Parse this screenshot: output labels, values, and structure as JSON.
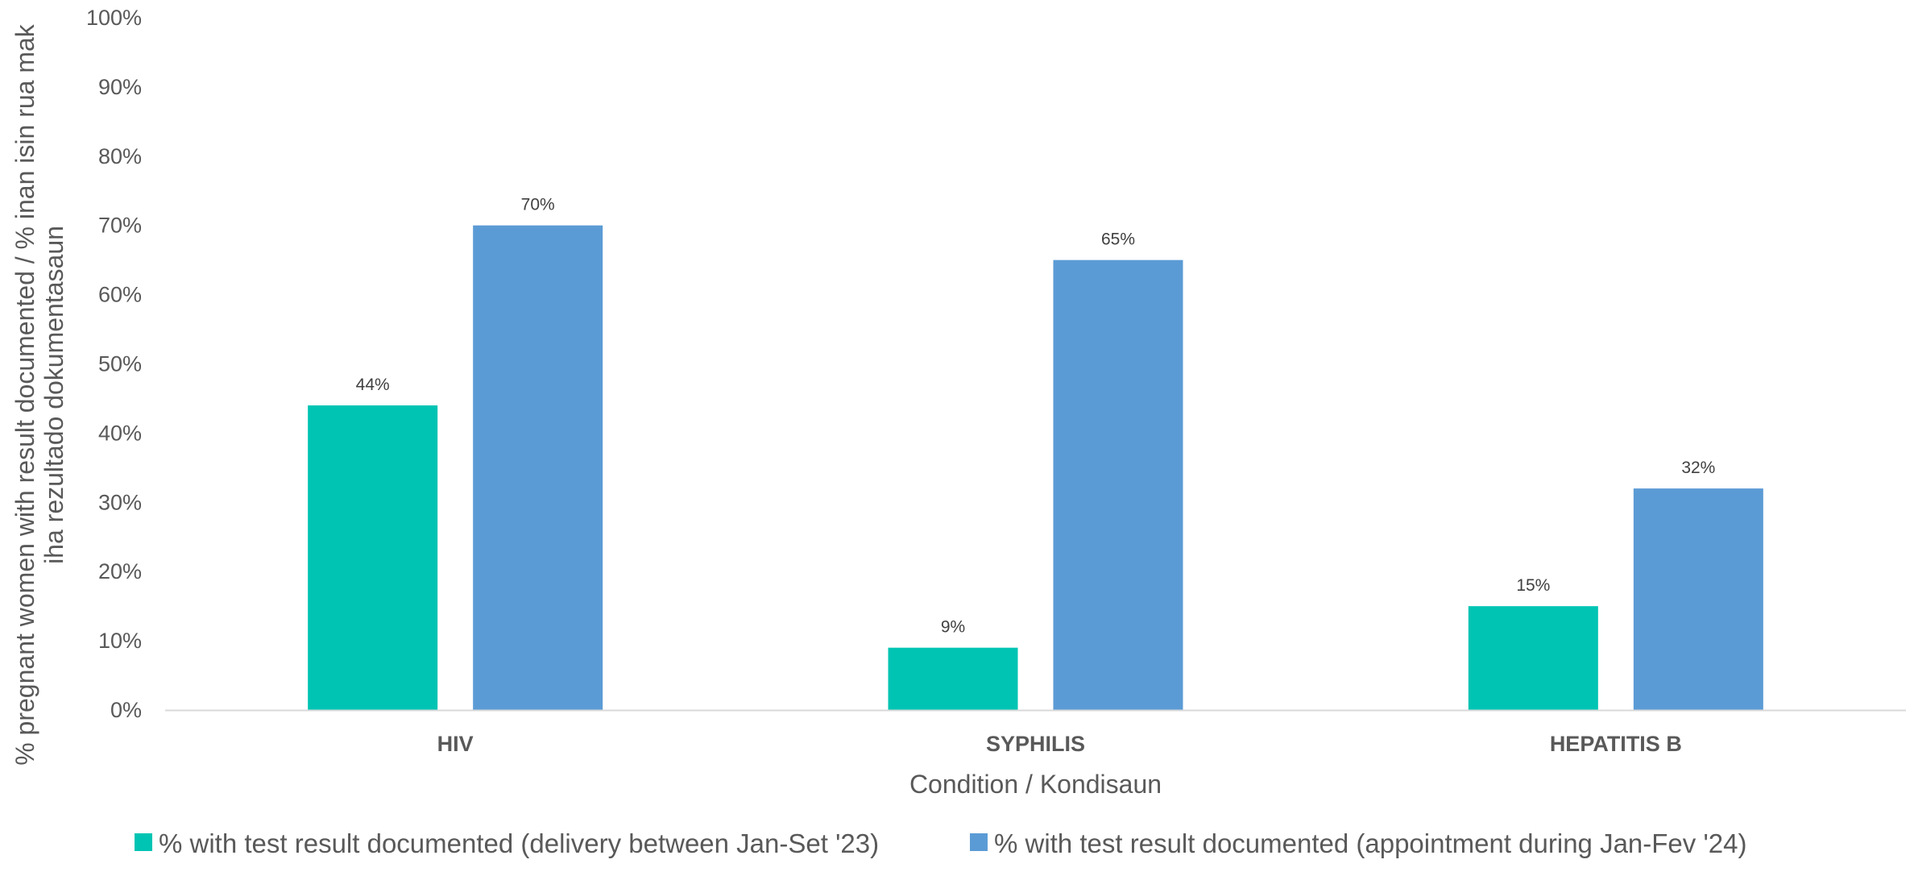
{
  "chart_data": {
    "type": "bar",
    "categories": [
      "HIV",
      "SYPHILIS",
      "HEPATITIS B"
    ],
    "series": [
      {
        "name": "% with test result documented (delivery between Jan-Set '23)",
        "values": [
          44,
          9,
          15
        ],
        "labels": [
          "44%",
          "9%",
          "15%"
        ],
        "color": "#00C4B3"
      },
      {
        "name": "% with test result documented (appointment during Jan-Fev '24)",
        "values": [
          70,
          65,
          32
        ],
        "labels": [
          "70%",
          "65%",
          "32%"
        ],
        "color": "#5B9BD5"
      }
    ],
    "xlabel": "Condition / Kondisaun",
    "ylabel_lines": [
      "% pregnant women with result documented / % inan isin rua mak",
      "iha rezultado dokumentasaun"
    ],
    "ylim": [
      0,
      100
    ],
    "yticks": [
      0,
      10,
      20,
      30,
      40,
      50,
      60,
      70,
      80,
      90,
      100
    ],
    "ytick_labels": [
      "0%",
      "10%",
      "20%",
      "30%",
      "40%",
      "50%",
      "60%",
      "70%",
      "80%",
      "90%",
      "100%"
    ],
    "grid": false,
    "legend_position": "bottom",
    "axis_color": "#D9D9D9"
  }
}
